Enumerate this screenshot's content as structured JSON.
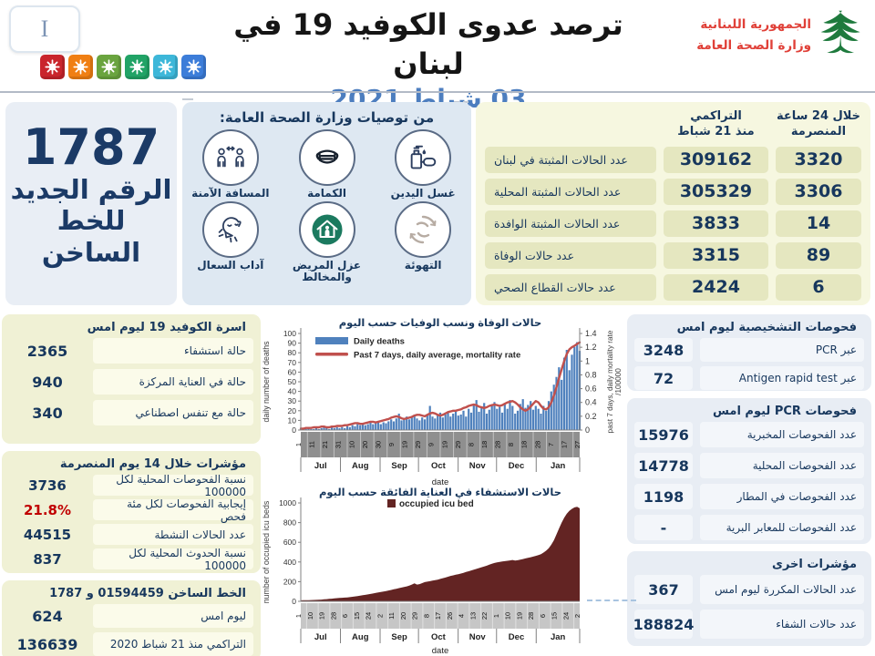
{
  "header": {
    "info_box": "I",
    "title": "ترصد عدوى الكوفيد 19 في لبنان",
    "date": "03 شباط 2021",
    "logo": {
      "line1": "الجمهورية اللبنانية",
      "line2": "وزارة الصحة العامة"
    },
    "virus_icon_colors": [
      "#c9252c",
      "#f07f13",
      "#6aa43f",
      "#21a366",
      "#3db7d9",
      "#3c7dd9"
    ]
  },
  "hotline_panel": {
    "number": "1787",
    "label_line1": "الرقم الجديد",
    "label_line2": "للخط الساخن"
  },
  "recommendations": {
    "title": "من توصيات وزارة الصحة العامة:",
    "items": [
      {
        "label": "غسل اليدين",
        "icon": "hand-sanitizer"
      },
      {
        "label": "الكمامة",
        "icon": "face-mask"
      },
      {
        "label": "المسافة الآمنة",
        "icon": "safe-distance"
      },
      {
        "label": "التهوئة",
        "icon": "ventilation"
      },
      {
        "label": "عزل المريض والمخالط",
        "icon": "isolation-house"
      },
      {
        "label": "آداب السعال",
        "icon": "cough-etiquette"
      }
    ]
  },
  "main_table": {
    "header_24h_line1": "خلال 24 ساعة",
    "header_24h_line2": "المنصرمة",
    "header_cum_line1": "التراكمي",
    "header_cum_line2": "منذ 21 شباط",
    "rows": [
      {
        "label": "عدد الحالات المثبتة في لبنان",
        "cumulative": "309162",
        "last24h": "3320"
      },
      {
        "label": "عدد الحالات المثبتة المحلية",
        "cumulative": "305329",
        "last24h": "3306"
      },
      {
        "label": "عدد الحالات المثبتة الوافدة",
        "cumulative": "3833",
        "last24h": "14"
      },
      {
        "label": "عدد حالات الوفاة",
        "cumulative": "3315",
        "last24h": "89"
      },
      {
        "label": "عدد حالات القطاع الصحي",
        "cumulative": "2424",
        "last24h": "6"
      }
    ]
  },
  "left_panels": [
    {
      "title": "اسرة الكوفيد 19 ليوم امس",
      "rows": [
        {
          "value": "2365",
          "label": "حالة استشفاء"
        },
        {
          "value": "940",
          "label": "حالة في العناية المركزة"
        },
        {
          "value": "340",
          "label": "حالة مع تنفس اصطناعي"
        }
      ]
    },
    {
      "title": "مؤشرات خلال 14 يوم المنصرمة",
      "rows": [
        {
          "value": "3736",
          "label": "نسبة الفحوصات  المحلية لكل 100000"
        },
        {
          "value": "21.8%",
          "label": "إيجابية الفحوصات لكل مئة فحص",
          "highlight": true
        },
        {
          "value": "44515",
          "label": "عدد الحالات النشطة"
        },
        {
          "value": "837",
          "label": "نسبة الحدوث المحلية لكل 100000"
        }
      ]
    },
    {
      "title": "الخط الساخن 01594459 و 1787",
      "rows": [
        {
          "value": "624",
          "label": "ليوم امس"
        },
        {
          "value": "136639",
          "label": "التراكمي منذ 21 شباط 2020"
        }
      ]
    }
  ],
  "right_panels": [
    {
      "title": "فحوصات التشخيصية ليوم امس",
      "rows": [
        {
          "value": "3248",
          "label": "عبر PCR"
        },
        {
          "value": "72",
          "label": "عبر Antigen rapid test"
        }
      ]
    },
    {
      "title": "فحوصات PCR ليوم امس",
      "rows": [
        {
          "value": "15976",
          "label": "عدد الفحوصات المخبرية"
        },
        {
          "value": "14778",
          "label": "عدد الفحوصات المحلية"
        },
        {
          "value": "1198",
          "label": "عدد الفحوصات في المطار"
        },
        {
          "value": "-",
          "label": "عدد الفحوصات للمعابر البرية"
        }
      ]
    },
    {
      "title": "مؤشرات اخرى",
      "rows": [
        {
          "value": "367",
          "label": "عدد الحالات المكررة  ليوم امس"
        },
        {
          "value": "188824",
          "label": "عدد حالات الشفاء"
        }
      ]
    }
  ],
  "chart_data": [
    {
      "type": "bar",
      "title": "حالات الوفاة ونسب الوفيات حسب اليوم",
      "xlabel": "date",
      "ylabel": "daily number of deaths",
      "y2label_line1": "past 7 days, daily mortality rate",
      "y2label_line2": "/100000",
      "legend": [
        "Daily deaths",
        "Past 7 days, daily average, mortality rate"
      ],
      "ylim": [
        0,
        100
      ],
      "y2lim": [
        0,
        1.4
      ],
      "yticks": [
        0,
        10,
        20,
        30,
        40,
        50,
        60,
        70,
        80,
        90,
        100
      ],
      "y2ticks": [
        0,
        0.2,
        0.4,
        0.6,
        0.8,
        1,
        1.2,
        1.4
      ],
      "xtick_labels": [
        "1",
        "11",
        "21",
        "31",
        "10",
        "20",
        "30",
        "9",
        "19",
        "29",
        "9",
        "19",
        "29",
        "8",
        "18",
        "28",
        "8",
        "18",
        "28",
        "7",
        "17",
        "27"
      ],
      "months": [
        "Jul",
        "Aug",
        "Sep",
        "Oct",
        "Nov",
        "Dec",
        "Jan"
      ],
      "month_days": [
        31,
        31,
        30,
        31,
        30,
        31,
        34
      ],
      "grid": false,
      "legend_position": "top-left",
      "series": [
        {
          "name": "Daily deaths",
          "axis": "left",
          "values": [
            1,
            0,
            1,
            2,
            1,
            1,
            2,
            1,
            2,
            3,
            2,
            1,
            3,
            2,
            3,
            2,
            3,
            2,
            4,
            3,
            5,
            4,
            6,
            5,
            7,
            5,
            6,
            8,
            6,
            7,
            9,
            6,
            8,
            7,
            9,
            11,
            9,
            12,
            17,
            10,
            12,
            14,
            11,
            13,
            15,
            12,
            10,
            13,
            11,
            16,
            25,
            14,
            12,
            15,
            18,
            13,
            16,
            19,
            14,
            17,
            20,
            15,
            16,
            20,
            14,
            22,
            18,
            26,
            31,
            19,
            24,
            28,
            17,
            21,
            25,
            29,
            22,
            24,
            18,
            28,
            22,
            31,
            25,
            17,
            20,
            27,
            32,
            23,
            26,
            30,
            21,
            25,
            22,
            17,
            25,
            20,
            30,
            40,
            47,
            55,
            65,
            52,
            75,
            83,
            62,
            78,
            86,
            91,
            82
          ]
        },
        {
          "name": "Past 7 days, daily average, mortality rate",
          "axis": "right",
          "values": [
            0.02,
            0.02,
            0.03,
            0.03,
            0.03,
            0.04,
            0.04,
            0.04,
            0.05,
            0.05,
            0.04,
            0.04,
            0.05,
            0.05,
            0.06,
            0.06,
            0.06,
            0.07,
            0.07,
            0.08,
            0.09,
            0.1,
            0.1,
            0.09,
            0.09,
            0.1,
            0.11,
            0.12,
            0.12,
            0.11,
            0.12,
            0.13,
            0.14,
            0.15,
            0.16,
            0.18,
            0.19,
            0.2,
            0.19,
            0.17,
            0.16,
            0.17,
            0.18,
            0.19,
            0.21,
            0.22,
            0.22,
            0.21,
            0.2,
            0.22,
            0.24,
            0.25,
            0.24,
            0.22,
            0.21,
            0.22,
            0.24,
            0.26,
            0.27,
            0.28,
            0.28,
            0.29,
            0.3,
            0.32,
            0.33,
            0.35,
            0.36,
            0.37,
            0.36,
            0.34,
            0.33,
            0.32,
            0.33,
            0.35,
            0.36,
            0.37,
            0.36,
            0.35,
            0.36,
            0.38,
            0.4,
            0.41,
            0.42,
            0.4,
            0.37,
            0.33,
            0.3,
            0.28,
            0.3,
            0.34,
            0.38,
            0.42,
            0.4,
            0.35,
            0.31,
            0.3,
            0.33,
            0.4,
            0.5,
            0.62,
            0.75,
            0.88,
            1.0,
            1.1,
            1.17,
            1.2,
            1.22,
            1.25,
            1.27
          ]
        }
      ],
      "colors": {
        "bar": "#4f81bd",
        "line": "#c0504d"
      }
    },
    {
      "type": "area",
      "title": "حالات الاستشفاء في العناية الفائقة حسب اليوم",
      "xlabel": "date",
      "ylabel": "number of occupied icu beds",
      "legend": [
        "occupied icu bed"
      ],
      "ylim": [
        0,
        1000
      ],
      "yticks": [
        0,
        200,
        400,
        600,
        800,
        1000
      ],
      "xtick_labels": [
        "1",
        "10",
        "19",
        "28",
        "6",
        "15",
        "24",
        "2",
        "11",
        "20",
        "29",
        "8",
        "17",
        "26",
        "4",
        "13",
        "22",
        "1",
        "10",
        "19",
        "28",
        "6",
        "15",
        "24",
        "2"
      ],
      "months": [
        "Jul",
        "Aug",
        "Sep",
        "Oct",
        "Nov",
        "Dec",
        "Jan"
      ],
      "month_days": [
        31,
        31,
        30,
        31,
        30,
        31,
        34
      ],
      "grid": false,
      "legend_position": "top-center",
      "series": [
        {
          "name": "occupied icu bed",
          "axis": "left",
          "values": [
            10,
            11,
            12,
            12,
            13,
            14,
            15,
            16,
            18,
            20,
            22,
            25,
            27,
            30,
            32,
            34,
            36,
            38,
            40,
            43,
            46,
            50,
            54,
            58,
            62,
            66,
            70,
            75,
            80,
            85,
            90,
            95,
            100,
            105,
            110,
            116,
            122,
            128,
            134,
            140,
            146,
            152,
            160,
            170,
            182,
            170,
            175,
            185,
            195,
            200,
            205,
            210,
            215,
            220,
            228,
            235,
            242,
            250,
            258,
            264,
            270,
            276,
            282,
            290,
            298,
            306,
            314,
            322,
            330,
            338,
            346,
            354,
            362,
            372,
            382,
            390,
            396,
            400,
            405,
            408,
            412,
            416,
            420,
            415,
            418,
            424,
            430,
            436,
            442,
            448,
            455,
            462,
            470,
            480,
            495,
            515,
            540,
            575,
            620,
            680,
            740,
            800,
            850,
            890,
            920,
            940,
            955,
            960,
            945
          ]
        }
      ],
      "colors": {
        "area": "#632423"
      }
    }
  ]
}
